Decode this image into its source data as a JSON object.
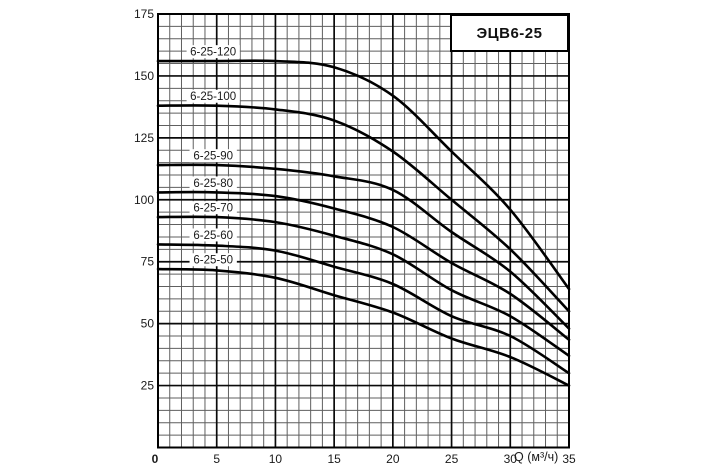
{
  "chart_data": {
    "type": "line",
    "title": "ЭЦВ6-25",
    "xlabel": "Q (м³/ч)",
    "ylabel": "",
    "xlim": [
      0,
      35
    ],
    "ylim": [
      0,
      175
    ],
    "x_minor_step": 1,
    "y_minor_step": 5,
    "x_major_step": 5,
    "y_major_step": 25,
    "grid": "on",
    "legend_position": "inline-labels",
    "x_tick_labels": [
      "0",
      "5",
      "10",
      "15",
      "20",
      "25",
      "30",
      "35"
    ],
    "y_tick_labels": [
      "25",
      "50",
      "75",
      "100",
      "125",
      "150",
      "175"
    ],
    "x": [
      0,
      5,
      10,
      15,
      20,
      25,
      30,
      35
    ],
    "series": [
      {
        "name": "6-25-120",
        "values": [
          156,
          156,
          156,
          153.5,
          142,
          119.5,
          96,
          64
        ]
      },
      {
        "name": "6-25-100",
        "values": [
          138,
          138,
          136.5,
          132,
          119.5,
          100,
          80,
          55
        ]
      },
      {
        "name": "6-25-90",
        "values": [
          114,
          114,
          112.5,
          109.5,
          104,
          87,
          71,
          48
        ]
      },
      {
        "name": "6-25-80",
        "values": [
          103,
          103,
          101.5,
          96.5,
          89,
          74.5,
          62,
          43.5
        ]
      },
      {
        "name": "6-25-70",
        "values": [
          93,
          93,
          91,
          85.5,
          78,
          63.5,
          53,
          37
        ]
      },
      {
        "name": "6-25-60",
        "values": [
          82,
          81.5,
          79.5,
          73,
          66,
          53,
          45,
          30
        ]
      },
      {
        "name": "6-25-50",
        "values": [
          72,
          71.5,
          68.5,
          61.5,
          54.5,
          44,
          36.5,
          25
        ]
      }
    ],
    "series_label_q": 4.7,
    "colors": {
      "curve": "#000000",
      "grid_minor": "#5f5f5f",
      "grid_major": "#0a0a0a",
      "border": "#000000",
      "background": "#ffffff",
      "text": "#1a1a1a"
    }
  }
}
